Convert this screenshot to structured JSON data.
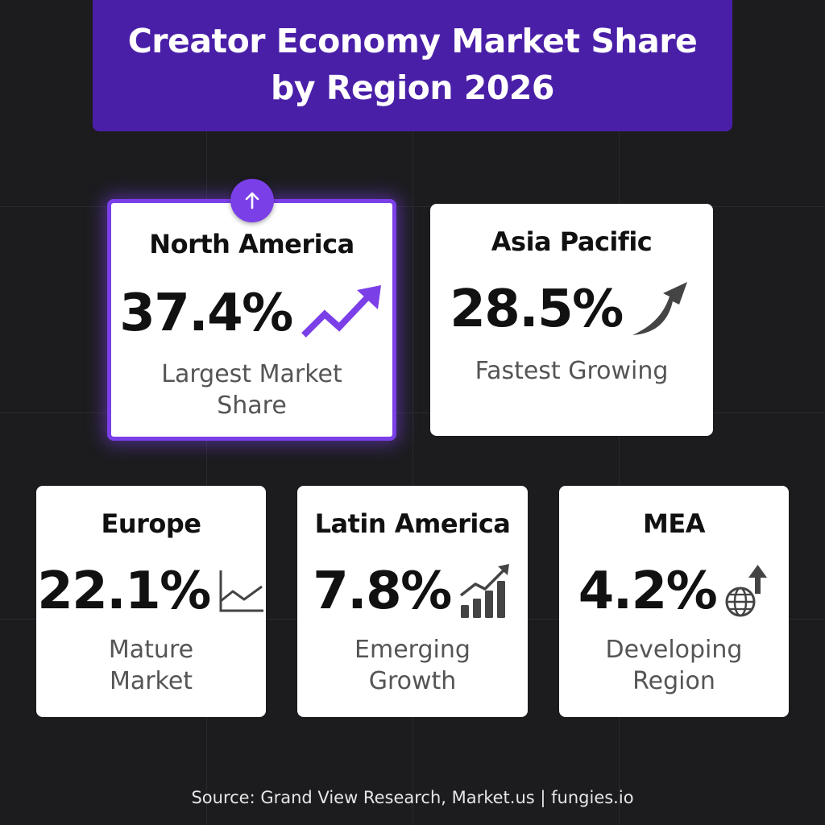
{
  "title": {
    "line1": "Creator Economy Market Share",
    "line2": "by Region 2026"
  },
  "colors": {
    "background": "#1c1c1f",
    "banner": "#4a1fa8",
    "accent": "#7b3fe8",
    "card": "#ffffff",
    "icon_dark": "#444444"
  },
  "cards": [
    {
      "region": "North America",
      "value": "37.4%",
      "desc_line1": "Largest Market",
      "desc_line2": "Share",
      "icon": "trending-up-icon",
      "featured": true,
      "badge_icon": "arrow-up-icon"
    },
    {
      "region": "Asia Pacific",
      "value": "28.5%",
      "desc_line1": "Fastest Growing",
      "icon": "curved-arrow-up-icon"
    },
    {
      "region": "Europe",
      "value": "22.1%",
      "desc_line1": "Mature",
      "desc_line2": "Market",
      "icon": "line-chart-icon"
    },
    {
      "region": "Latin America",
      "value": "7.8%",
      "desc_line1": "Emerging",
      "desc_line2": "Growth",
      "icon": "bar-chart-growth-icon"
    },
    {
      "region": "MEA",
      "value": "4.2%",
      "desc_line1": "Developing",
      "desc_line2": "Region",
      "icon": "globe-arrow-icon"
    }
  ],
  "source": "Source: Grand View Research, Market.us | fungies.io"
}
